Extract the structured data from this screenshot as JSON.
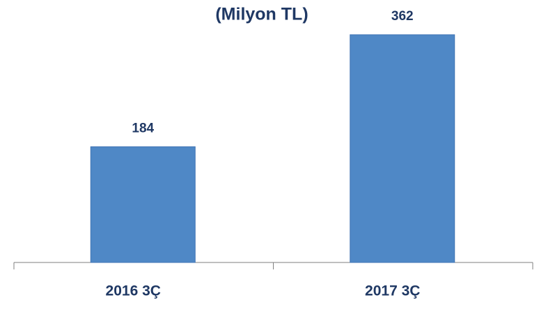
{
  "chart_data": {
    "type": "bar",
    "title": "(Milyon TL)",
    "categories": [
      "2016 3Ç",
      "2017 3Ç"
    ],
    "values": [
      184,
      362
    ],
    "color": "#4f88c6"
  }
}
